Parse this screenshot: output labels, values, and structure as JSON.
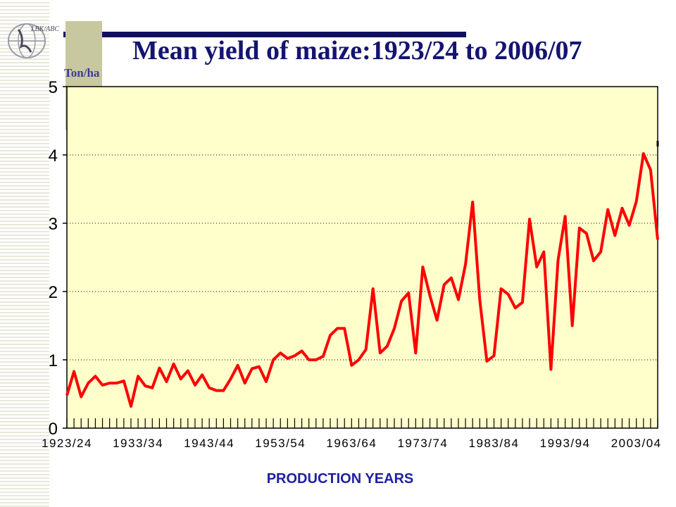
{
  "chart_data": {
    "type": "line",
    "title": "Mean yield of maize:1923/24 to 2006/07",
    "ylabel": "Ton/ha",
    "xlabel": "PRODUCTION YEARS",
    "ylim": [
      0,
      5
    ],
    "yticks": [
      0,
      1,
      2,
      3,
      4,
      5
    ],
    "grid": "horizontal dotted",
    "x_tick_labels": [
      "1923/24",
      "1933/34",
      "1943/44",
      "1953/54",
      "1963/64",
      "1973/74",
      "1983/84",
      "1993/94",
      "2003/04"
    ],
    "series": [
      {
        "color": "#ff0000",
        "values": [
          0.48,
          0.83,
          0.46,
          0.66,
          0.76,
          0.63,
          0.66,
          0.66,
          0.69,
          0.32,
          0.76,
          0.62,
          0.59,
          0.88,
          0.68,
          0.94,
          0.72,
          0.84,
          0.63,
          0.78,
          0.59,
          0.55,
          0.55,
          0.72,
          0.92,
          0.66,
          0.87,
          0.9,
          0.68,
          1.0,
          1.1,
          1.02,
          1.06,
          1.13,
          1.0,
          1.0,
          1.05,
          1.36,
          1.46,
          1.46,
          0.92,
          1.0,
          1.15,
          2.04,
          1.1,
          1.2,
          1.46,
          1.86,
          1.98,
          1.1,
          2.36,
          1.94,
          1.58,
          2.1,
          2.2,
          1.88,
          2.4,
          3.31,
          1.88,
          0.98,
          1.06,
          2.04,
          1.96,
          1.76,
          1.84,
          3.06,
          2.36,
          2.58,
          0.86,
          2.46,
          3.1,
          1.5,
          2.93,
          2.85,
          2.45,
          2.58,
          3.2,
          2.82,
          3.22,
          2.97,
          3.32,
          4.02,
          3.78,
          2.76
        ]
      }
    ]
  },
  "logo": {
    "text": "LBK/ABC"
  },
  "colors": {
    "plot_bg": "#ffffcc",
    "line": "#ff0000",
    "title": "#141470"
  }
}
